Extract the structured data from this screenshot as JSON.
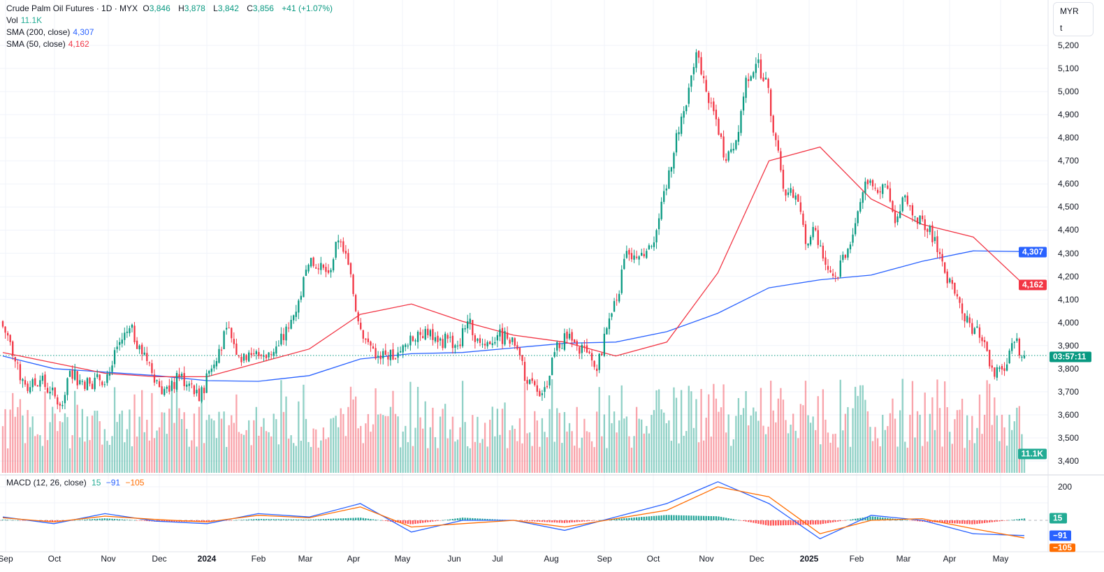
{
  "header": {
    "title": "Crude Palm Oil Futures · 1D · MYX",
    "open_label": "O",
    "open": "3,846",
    "high_label": "H",
    "high": "3,878",
    "low_label": "L",
    "low": "3,842",
    "close_label": "C",
    "close": "3,856",
    "change": "+41 (+1.07%)",
    "vol_label": "Vol",
    "vol": "11.1K",
    "sma200_label": "SMA (200, close)",
    "sma200": "4,307",
    "sma50_label": "SMA (50, close)",
    "sma50": "4,162",
    "macd_label": "MACD (12, 26, close)",
    "macd_hist": "15",
    "macd_line": "−91",
    "macd_signal": "−105"
  },
  "unit_box": {
    "currency": "MYR",
    "unit": "t"
  },
  "tags": {
    "sma200": "4,307",
    "sma50": "4,162",
    "countdown": "03:57:11",
    "volume": "11.1K",
    "macd_hist": "15",
    "macd_line": "−91",
    "macd_signal": "−105"
  },
  "colors": {
    "up": "#089981",
    "down": "#f23645",
    "sma200": "#2962ff",
    "sma50": "#f23645",
    "macd": "#2962ff",
    "signal": "#ff6d00"
  },
  "chart_data": {
    "type": "candlestick",
    "title": "Crude Palm Oil Futures · 1D · MYX",
    "ylabel": "MYR/t",
    "ylim": [
      3400,
      5200
    ],
    "price_ticks": [
      "5,200",
      "5,100",
      "5,000",
      "4,900",
      "4,800",
      "4,700",
      "4,600",
      "4,500",
      "4,400",
      "4,300",
      "4,200",
      "4,100",
      "4,000",
      "3,900",
      "3,800",
      "3,700",
      "3,600",
      "3,500",
      "3,400"
    ],
    "time_ticks": [
      "Sep",
      "Oct",
      "Nov",
      "Dec",
      "2024",
      "Feb",
      "Mar",
      "Apr",
      "May",
      "Jun",
      "Jul",
      "Aug",
      "Sep",
      "Oct",
      "Nov",
      "Dec",
      "2025",
      "Feb",
      "Mar",
      "Apr",
      "May"
    ],
    "close_keypoints": [
      4005,
      3915,
      3750,
      3720,
      3750,
      3700,
      3640,
      3790,
      3750,
      3735,
      3750,
      3780,
      3915,
      3975,
      3900,
      3825,
      3720,
      3700,
      3765,
      3735,
      3660,
      3790,
      3885,
      3975,
      3855,
      3870,
      3855,
      3870,
      3900,
      3975,
      4095,
      4250,
      4230,
      4215,
      4355,
      4250,
      4005,
      3915,
      3855,
      3840,
      3870,
      3900,
      3960,
      3945,
      3915,
      3930,
      3900,
      4005,
      3930,
      3915,
      3945,
      3930,
      3885,
      3735,
      3700,
      3720,
      3915,
      3930,
      3900,
      3870,
      3790,
      3975,
      4095,
      4310,
      4280,
      4310,
      4400,
      4580,
      4820,
      4940,
      5170,
      5000,
      4880,
      4700,
      4790,
      5060,
      5120,
      5060,
      4790,
      4550,
      4550,
      4340,
      4400,
      4250,
      4200,
      4280,
      4430,
      4610,
      4580,
      4600,
      4430,
      4550,
      4460,
      4400,
      4370,
      4215,
      4125,
      4005,
      3975,
      3915,
      3765,
      3790,
      3915,
      3856
    ],
    "last_bar": {
      "open": 3846,
      "high": 3878,
      "low": 3842,
      "close": 3856,
      "volume": "11.1K"
    },
    "sma200": [
      3855,
      3800,
      3785,
      3770,
      3748,
      3745,
      3770,
      3842,
      3865,
      3870,
      3890,
      3910,
      3915,
      3960,
      4040,
      4150,
      4185,
      4205,
      4265,
      4310,
      4307
    ],
    "sma50": [
      3870,
      3825,
      3780,
      3765,
      3765,
      3825,
      3885,
      4035,
      4080,
      4005,
      3945,
      3915,
      3855,
      3915,
      4215,
      4700,
      4760,
      4535,
      4425,
      4370,
      4162
    ],
    "macd": {
      "ticks": [
        "200"
      ],
      "ylim": [
        -120,
        230
      ],
      "macd_line": [
        20,
        -20,
        40,
        -5,
        -20,
        40,
        20,
        100,
        -70,
        0,
        0,
        -60,
        20,
        100,
        230,
        100,
        -110,
        30,
        0,
        -80,
        -91
      ],
      "signal_line": [
        15,
        -10,
        25,
        5,
        -10,
        30,
        15,
        80,
        -40,
        -20,
        0,
        -40,
        10,
        60,
        200,
        140,
        -80,
        0,
        10,
        -50,
        -105
      ]
    }
  }
}
